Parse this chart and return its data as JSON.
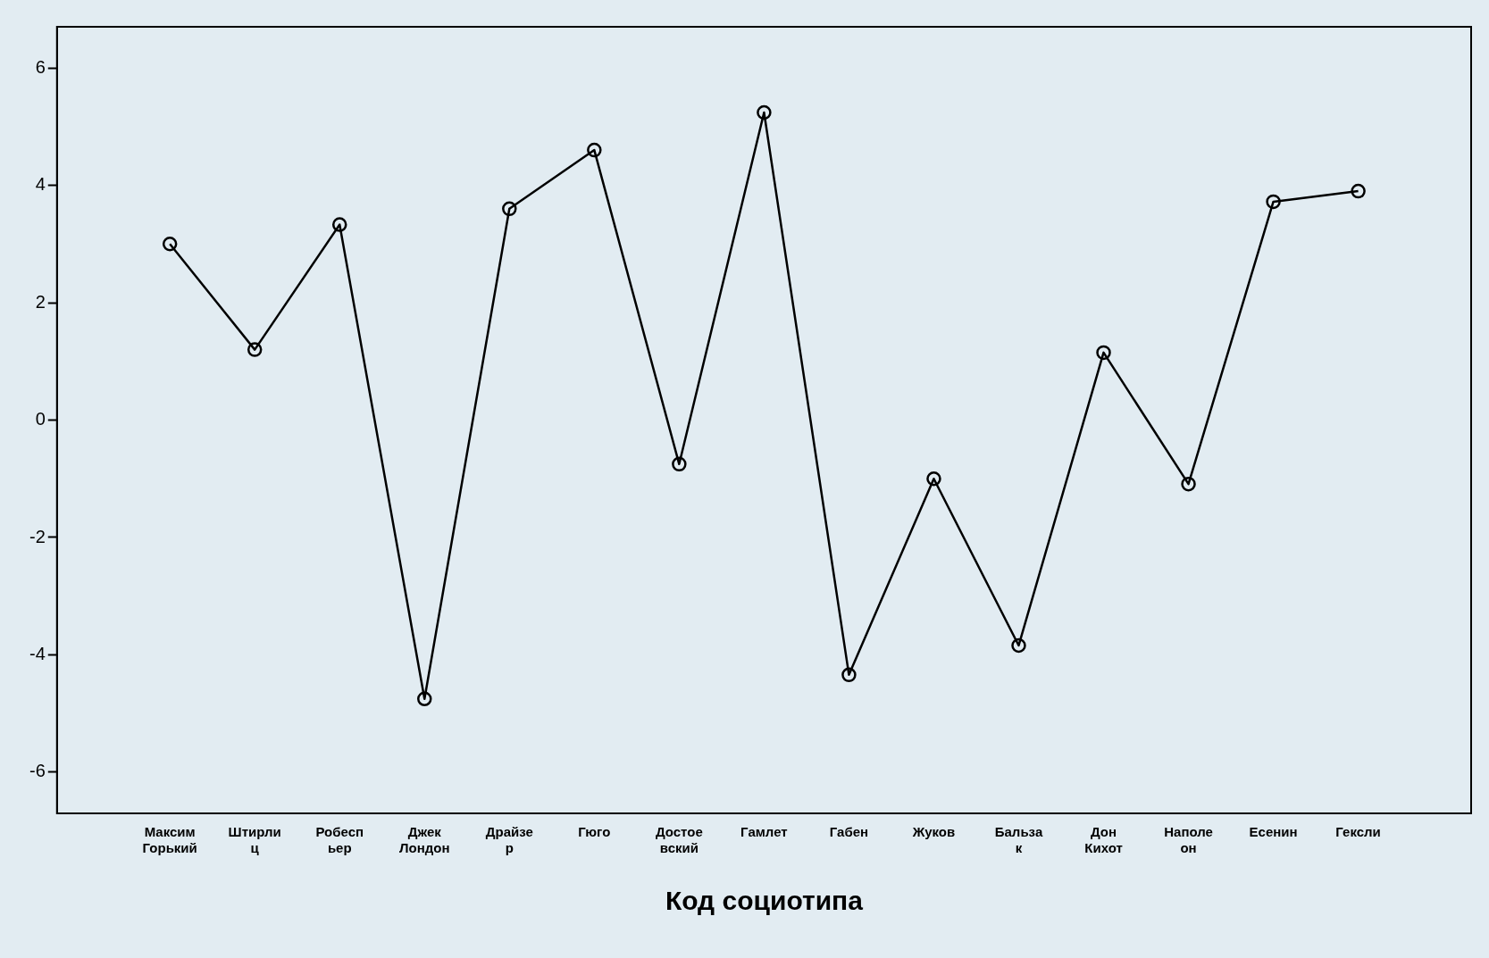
{
  "chart_data": {
    "type": "line",
    "xlabel": "Код социотипа",
    "categories": [
      "Максим\nГорький",
      "Штирли\nц",
      "Робесп\nьер",
      "Джек\nЛондон",
      "Драйзе\nр",
      "Гюго",
      "Достое\nвский",
      "Гамлет",
      "Габен",
      "Жуков",
      "Бальза\nк",
      "Дон\nКихот",
      "Наполе\nон",
      "Есенин",
      "Гексли"
    ],
    "series": [
      {
        "color": "#000000",
        "values": [
          3.0,
          1.2,
          3.33,
          -4.75,
          3.6,
          4.6,
          -0.75,
          5.24,
          -4.34,
          -1.0,
          -3.84,
          1.15,
          -1.09,
          3.72,
          3.9
        ]
      }
    ],
    "ylim": [
      -6.7,
      6.7
    ],
    "yticks": [
      -6,
      -4,
      -2,
      0,
      2,
      4,
      6
    ],
    "grid": false,
    "legend": false,
    "marker": "circle",
    "line_style": "solid"
  }
}
